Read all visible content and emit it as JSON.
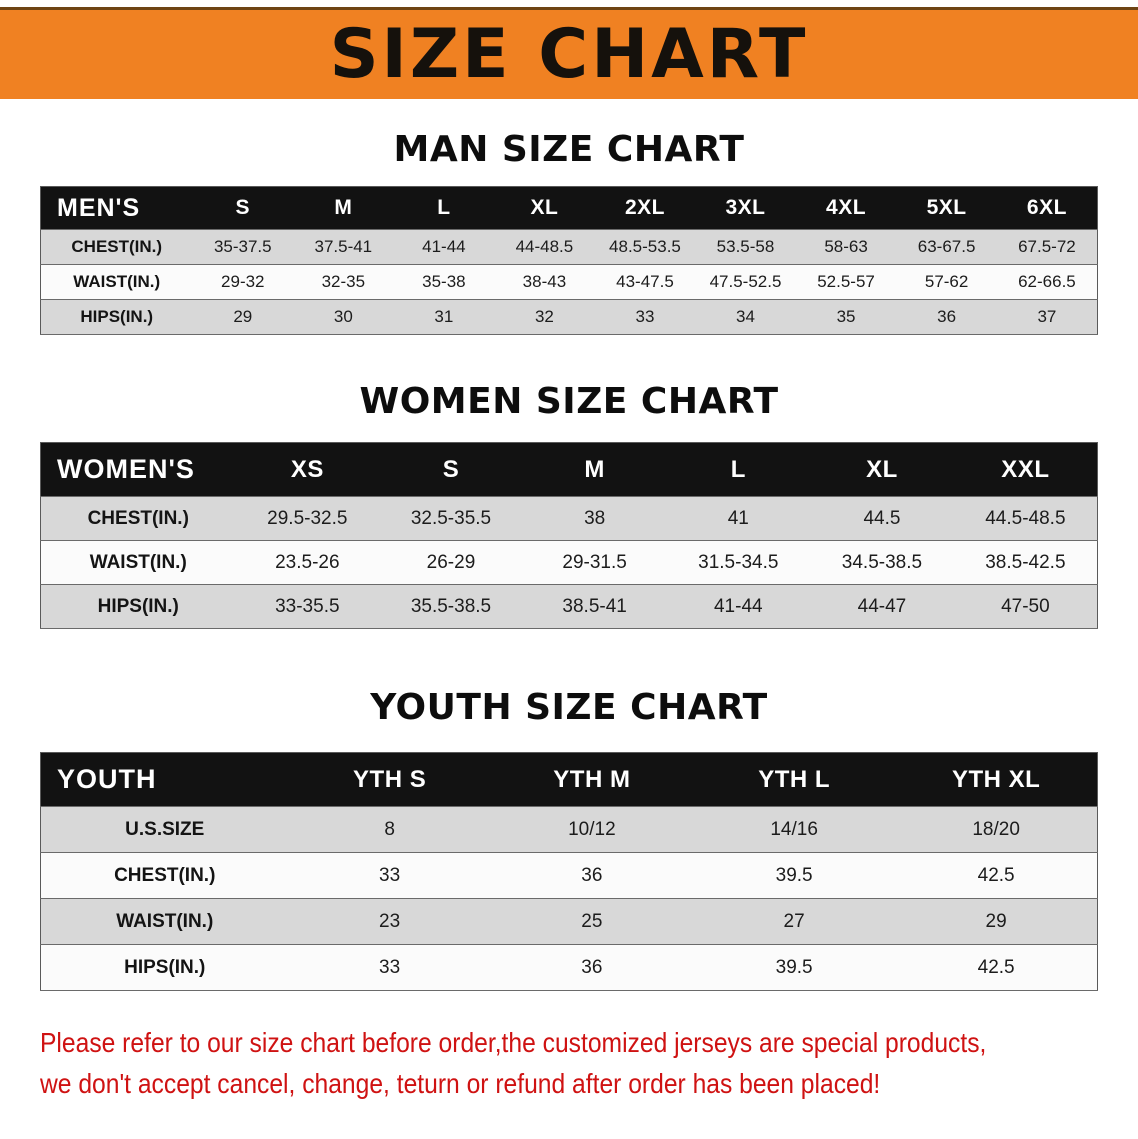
{
  "banner": {
    "title": "SIZE CHART"
  },
  "colors": {
    "banner_bg": "#f08122",
    "header_bg": "#121212",
    "row_alt": "#d8d8d8",
    "disclaimer": "#cf1212"
  },
  "sections": [
    {
      "id": "men",
      "heading": "MAN SIZE CHART",
      "header": [
        "MEN'S",
        "S",
        "M",
        "L",
        "XL",
        "2XL",
        "3XL",
        "4XL",
        "5XL",
        "6XL"
      ],
      "rows": [
        [
          "CHEST(IN.)",
          "35-37.5",
          "37.5-41",
          "41-44",
          "44-48.5",
          "48.5-53.5",
          "53.5-58",
          "58-63",
          "63-67.5",
          "67.5-72"
        ],
        [
          "WAIST(IN.)",
          "29-32",
          "32-35",
          "35-38",
          "38-43",
          "43-47.5",
          "47.5-52.5",
          "52.5-57",
          "57-62",
          "62-66.5"
        ],
        [
          "HIPS(IN.)",
          "29",
          "30",
          "31",
          "32",
          "33",
          "34",
          "35",
          "36",
          "37"
        ]
      ]
    },
    {
      "id": "women",
      "heading": "WOMEN SIZE CHART",
      "header": [
        "WOMEN'S",
        "XS",
        "S",
        "M",
        "L",
        "XL",
        "XXL"
      ],
      "rows": [
        [
          "CHEST(IN.)",
          "29.5-32.5",
          "32.5-35.5",
          "38",
          "41",
          "44.5",
          "44.5-48.5"
        ],
        [
          "WAIST(IN.)",
          "23.5-26",
          "26-29",
          "29-31.5",
          "31.5-34.5",
          "34.5-38.5",
          "38.5-42.5"
        ],
        [
          "HIPS(IN.)",
          "33-35.5",
          "35.5-38.5",
          "38.5-41",
          "41-44",
          "44-47",
          "47-50"
        ]
      ]
    },
    {
      "id": "youth",
      "heading": "YOUTH SIZE CHART",
      "header": [
        "YOUTH",
        "YTH S",
        "YTH M",
        "YTH L",
        "YTH XL"
      ],
      "rows": [
        [
          "U.S.SIZE",
          "8",
          "10/12",
          "14/16",
          "18/20"
        ],
        [
          "CHEST(IN.)",
          "33",
          "36",
          "39.5",
          "42.5"
        ],
        [
          "WAIST(IN.)",
          "23",
          "25",
          "27",
          "29"
        ],
        [
          "HIPS(IN.)",
          "33",
          "36",
          "39.5",
          "42.5"
        ]
      ]
    }
  ],
  "disclaimer": {
    "line1": "Please refer to our size chart before order,the customized jerseys are special products,",
    "line2": "we don't accept cancel, change, teturn or refund after order has been placed!"
  }
}
